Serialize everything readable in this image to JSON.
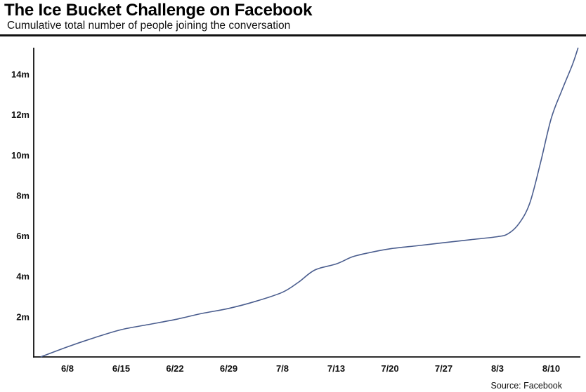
{
  "header": {
    "title": "The Ice Bucket Challenge on Facebook",
    "subtitle": "Cumulative total number of people joining the conversation"
  },
  "footer": {
    "source": "Source: Facebook"
  },
  "colors": {
    "line": "#4a5d8e",
    "axis": "#111111"
  },
  "chart_data": {
    "type": "line",
    "title": "The Ice Bucket Challenge on Facebook",
    "subtitle": "Cumulative total number of people joining the conversation",
    "xlabel": "",
    "ylabel": "",
    "y_unit": "millions",
    "ylim": [
      0,
      15.3
    ],
    "x_tick_labels": [
      "6/8",
      "6/15",
      "6/22",
      "6/29",
      "7/8",
      "7/13",
      "7/20",
      "7/27",
      "8/3",
      "8/10"
    ],
    "y_tick_values": [
      2,
      4,
      6,
      8,
      10,
      12,
      14
    ],
    "y_tick_labels": [
      "2m",
      "4m",
      "6m",
      "8m",
      "10m",
      "12m",
      "14m"
    ],
    "grid": false,
    "series": [
      {
        "values_x_tick_index": [
          -0.5,
          0,
          0.5,
          1,
          1.5,
          2,
          2.5,
          3,
          3.5,
          4,
          4.3,
          4.6,
          5,
          5.3,
          5.6,
          6,
          6.5,
          7,
          7.5,
          8,
          8.2,
          8.4,
          8.6,
          8.8,
          9,
          9.2,
          9.4,
          9.5
        ],
        "values": [
          0,
          0.5,
          0.95,
          1.35,
          1.6,
          1.85,
          2.15,
          2.4,
          2.75,
          3.2,
          3.7,
          4.3,
          4.6,
          4.95,
          5.15,
          5.35,
          5.5,
          5.65,
          5.8,
          5.95,
          6.1,
          6.6,
          7.6,
          9.6,
          11.8,
          13.2,
          14.5,
          15.3
        ]
      }
    ]
  }
}
